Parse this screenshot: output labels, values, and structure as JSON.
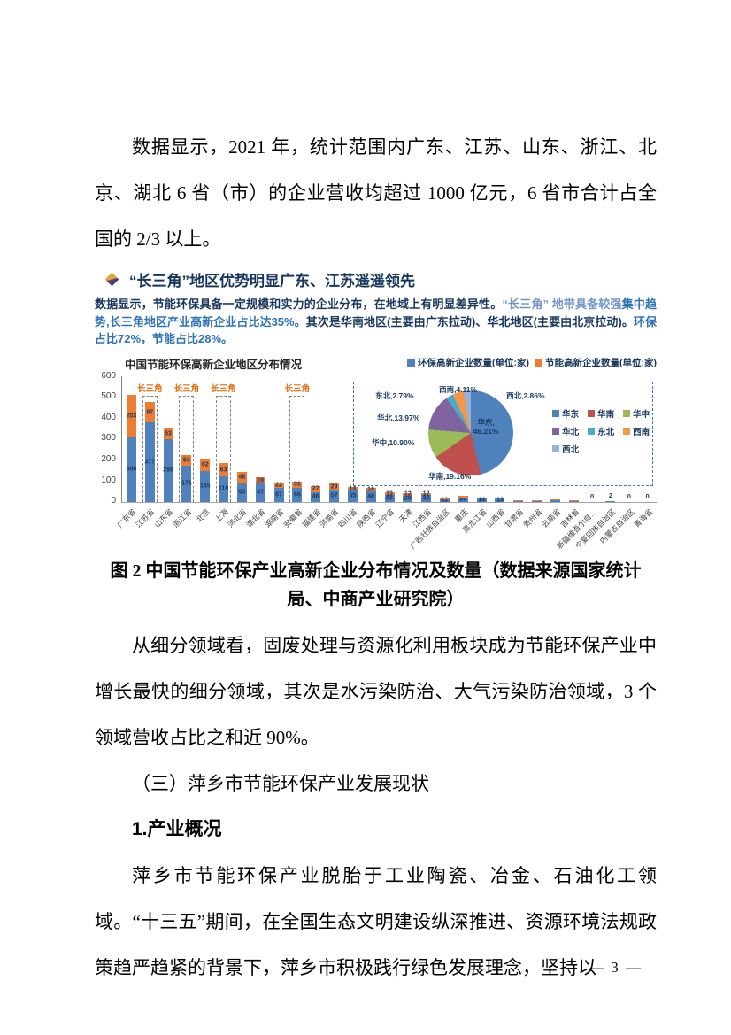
{
  "page_number": "— 3 —",
  "body": {
    "p1": "数据显示，2021 年，统计范围内广东、江苏、山东、浙江、北京、湖北 6 省（市）的企业营收均超过 1000 亿元，6 省市合计占全国的 2/3 以上。",
    "p2": "从细分领域看，固废处理与资源化利用板块成为节能环保产业中增长最快的细分领域，其次是水污染防治、大气污染防治领域，3 个领域营收占比之和近 90%。",
    "h3": "（三）萍乡市节能环保产业发展现状",
    "h4": "1.产业概况",
    "p3": "萍乡市节能环保产业脱胎于工业陶瓷、冶金、石油化工领域。“十三五”期间，在全国生态文明建设纵深推进、资源环境法规政策趋严趋紧的背景下，萍乡市积极践行绿色发展理念，坚持以"
  },
  "figure": {
    "header_title": "“长三角”地区优势明显广东、江苏遥遥领先",
    "description": [
      {
        "text": "数据显示，节能环保具备一定规模和实力的企业分布，在地域上有明显差异性。",
        "color": "#17365D"
      },
      {
        "text": "“长三角” 地带具备较强",
        "color": "#7396C8"
      },
      {
        "text": "集中趋势,长三角地区产业高新企业占比达35%。",
        "color": "#2E74B5"
      },
      {
        "text": "其次是华南地区(主要由广东拉动)、华北地区(主要由北京拉动)。",
        "color": "#17365D"
      },
      {
        "text": "环保占比72%，节能占比28%。",
        "color": "#2E74B5"
      }
    ],
    "caption": "图 2 中国节能环保产业高新企业分布情况及数量（数据来源国家统计局、中商产业研究院）"
  },
  "chart_data": [
    {
      "type": "bar",
      "title": "中国节能环保高新企业地区分布情况",
      "stacked": true,
      "ylim": [
        0,
        600
      ],
      "yticks": [
        0,
        100,
        200,
        300,
        400,
        500,
        600
      ],
      "grid": false,
      "legend_position": "top-right",
      "highlight_label": "长三角",
      "highlighted_categories": [
        "江苏省",
        "浙江省",
        "上海",
        "安徽省"
      ],
      "categories": [
        "广东省",
        "江苏省",
        "山东省",
        "浙江省",
        "北京",
        "上海",
        "河北省",
        "湖北省",
        "湖南省",
        "安徽省",
        "福建省",
        "河南省",
        "四川省",
        "陕西省",
        "辽宁省",
        "天津",
        "江西省",
        "广西壮族自治区",
        "重庆",
        "黑龙江省",
        "山西省",
        "甘肃省",
        "贵州省",
        "云南省",
        "吉林省",
        "新疆维吾尔自…",
        "宁夏回族自治区",
        "内蒙古自治区",
        "青海省"
      ],
      "series": [
        {
          "name": "环保高新企业数量(单位:家)",
          "color": "#4F81BD",
          "values": [
            306,
            377,
            298,
            171,
            145,
            119,
            93,
            87,
            67,
            66,
            46,
            57,
            55,
            48,
            30,
            28,
            30,
            12,
            20,
            14,
            13,
            5,
            6,
            8,
            6,
            0,
            2,
            0,
            0
          ]
        },
        {
          "name": "节能高新企业数量(单位:家)",
          "color": "#ED7D31",
          "values": [
            203,
            97,
            53,
            53,
            62,
            63,
            48,
            28,
            22,
            31,
            27,
            29,
            14,
            16,
            13,
            12,
            12,
            6,
            8,
            6,
            5,
            2,
            2,
            3,
            2,
            0,
            0,
            0,
            0
          ]
        }
      ]
    },
    {
      "type": "pie",
      "legend_position": "right",
      "slices": [
        {
          "label": "华东",
          "value": 46.21,
          "pct": "46.21%",
          "color": "#4F81BD"
        },
        {
          "label": "华南",
          "value": 19.16,
          "pct": "19.16%",
          "color": "#C0504D"
        },
        {
          "label": "华中",
          "value": 10.9,
          "pct": "10.90%",
          "color": "#9BBB59"
        },
        {
          "label": "华北",
          "value": 13.97,
          "pct": "13.97%",
          "color": "#8064A2"
        },
        {
          "label": "东北",
          "value": 2.79,
          "pct": "2.79%",
          "color": "#4BACC6"
        },
        {
          "label": "西南",
          "value": 4.11,
          "pct": "4.11%",
          "color": "#F79646"
        },
        {
          "label": "西北",
          "value": 2.86,
          "pct": "2.86%",
          "color": "#95B3D7"
        }
      ]
    }
  ]
}
